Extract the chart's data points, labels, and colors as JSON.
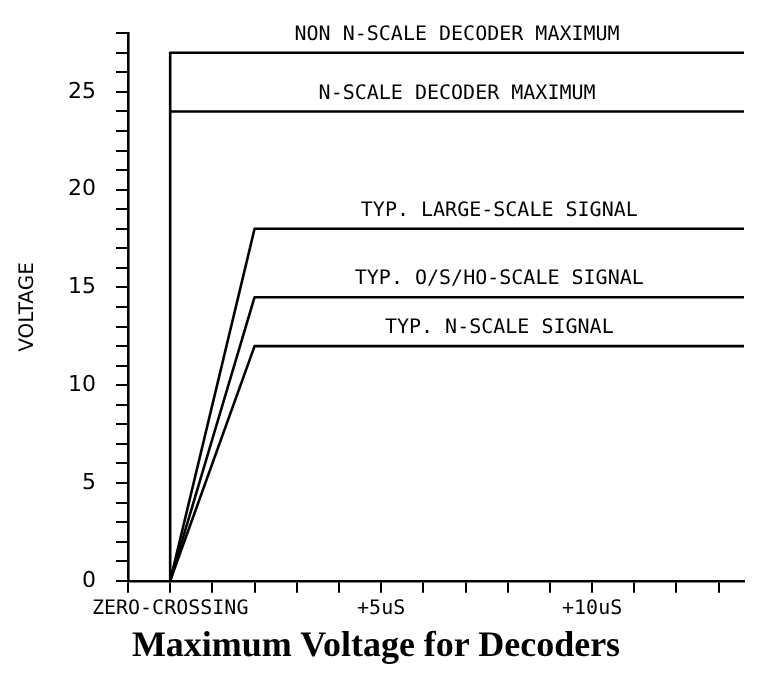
{
  "chart_data": {
    "type": "line",
    "title": "Maximum Voltage for Decoders",
    "ylabel": "VOLTAGE",
    "xlim": [
      -1,
      13.6
    ],
    "ylim": [
      0,
      28
    ],
    "xticks": [
      {
        "value": -1,
        "label": null
      },
      {
        "value": 0,
        "label": "ZERO-CROSSING"
      },
      {
        "value": 1,
        "label": null
      },
      {
        "value": 2,
        "label": null
      },
      {
        "value": 3,
        "label": null
      },
      {
        "value": 4,
        "label": null
      },
      {
        "value": 5,
        "label": "+5uS"
      },
      {
        "value": 6,
        "label": null
      },
      {
        "value": 7,
        "label": null
      },
      {
        "value": 8,
        "label": null
      },
      {
        "value": 9,
        "label": null
      },
      {
        "value": 10,
        "label": "+10uS"
      },
      {
        "value": 11,
        "label": null
      },
      {
        "value": 12,
        "label": null
      },
      {
        "value": 13,
        "label": null
      }
    ],
    "yticks": [
      0,
      {
        "value": 1,
        "label": null
      },
      {
        "value": 2,
        "label": null
      },
      {
        "value": 3,
        "label": null
      },
      {
        "value": 4,
        "label": null
      },
      5,
      {
        "value": 6,
        "label": null
      },
      {
        "value": 7,
        "label": null
      },
      {
        "value": 8,
        "label": null
      },
      {
        "value": 9,
        "label": null
      },
      10,
      {
        "value": 11,
        "label": null
      },
      {
        "value": 12,
        "label": null
      },
      {
        "value": 13,
        "label": null
      },
      {
        "value": 14,
        "label": null
      },
      15,
      {
        "value": 16,
        "label": null
      },
      {
        "value": 17,
        "label": null
      },
      {
        "value": 18,
        "label": null
      },
      {
        "value": 19,
        "label": null
      },
      20,
      {
        "value": 21,
        "label": null
      },
      {
        "value": 22,
        "label": null
      },
      {
        "value": 23,
        "label": null
      },
      {
        "value": 24,
        "label": null
      },
      25,
      {
        "value": 26,
        "label": null
      },
      {
        "value": 27,
        "label": null
      },
      {
        "value": 28,
        "label": null
      }
    ],
    "series": [
      {
        "name": "NON N-SCALE DECODER MAXIMUM",
        "color": "#000000",
        "x": [
          0,
          0,
          13.6
        ],
        "values": [
          0,
          27,
          27
        ]
      },
      {
        "name": "N-SCALE DECODER MAXIMUM",
        "color": "#000000",
        "x": [
          0,
          13.6
        ],
        "values": [
          24,
          24
        ]
      },
      {
        "name": "TYP. LARGE-SCALE SIGNAL",
        "color": "#000000",
        "x": [
          0,
          2,
          13.6
        ],
        "values": [
          0,
          18,
          18
        ]
      },
      {
        "name": "TYP. O/S/HO-SCALE SIGNAL",
        "color": "#000000",
        "x": [
          0,
          2,
          13.6
        ],
        "values": [
          0,
          14.5,
          14.5
        ]
      },
      {
        "name": "TYP. N-SCALE SIGNAL",
        "color": "#000000",
        "x": [
          0,
          2,
          13.6
        ],
        "values": [
          0,
          12,
          12
        ]
      }
    ],
    "grid": false,
    "legend": false,
    "marker": "none",
    "line_style": "solid"
  }
}
